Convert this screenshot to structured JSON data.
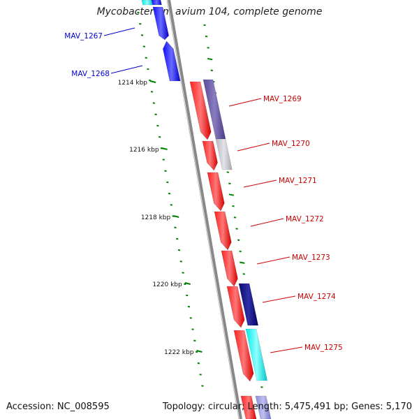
{
  "title": "Mycobacterium avium 104, complete genome",
  "footer": {
    "accession": "Accession: NC_008595",
    "topology": "Topology: circular; Length: 5,475,491 bp; Genes: 5,170"
  },
  "colors": {
    "backbone": "#888888",
    "tick": "#008000",
    "forward_gene": "#ff0000",
    "reverse_gene": "#0000ff",
    "left_label": "#0000cc",
    "right_label": "#cc0000"
  },
  "scale_marks": [
    {
      "kbp": 1214,
      "label": "1214 kbp"
    },
    {
      "kbp": 1216,
      "label": "1216 kbp"
    },
    {
      "kbp": 1218,
      "label": "1218 kbp"
    },
    {
      "kbp": 1220,
      "label": "1220 kbp"
    },
    {
      "kbp": 1222,
      "label": "1222 kbp"
    }
  ],
  "gene_labels": {
    "left": [
      "MAV_1267",
      "MAV_1268"
    ],
    "right": [
      "MAV_1269",
      "MAV_1270",
      "MAV_1271",
      "MAV_1272",
      "MAV_1273",
      "MAV_1274",
      "MAV_1275"
    ]
  },
  "genes": [
    {
      "id": "MAV_1267",
      "strand": "reverse",
      "color": "#0000ff"
    },
    {
      "id": "MAV_1268",
      "strand": "reverse",
      "color": "#0000ff"
    },
    {
      "id": "MAV_1269",
      "strand": "forward",
      "color": "#ff0000"
    },
    {
      "id": "MAV_1270",
      "strand": "forward",
      "color": "#ff0000"
    },
    {
      "id": "MAV_1271",
      "strand": "forward",
      "color": "#ff0000"
    },
    {
      "id": "MAV_1272",
      "strand": "forward",
      "color": "#ff0000"
    },
    {
      "id": "MAV_1273",
      "strand": "forward",
      "color": "#ff0000"
    },
    {
      "id": "MAV_1274",
      "strand": "forward",
      "color": "#ff0000"
    },
    {
      "id": "MAV_1275",
      "strand": "forward",
      "color": "#ff0000"
    }
  ]
}
